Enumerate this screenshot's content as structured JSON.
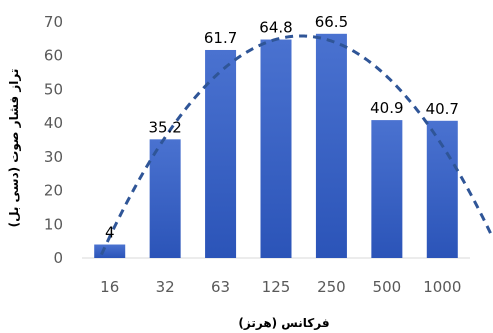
{
  "chart_data": {
    "type": "bar",
    "title": "",
    "xlabel": "فرکانس (هرتز)",
    "ylabel": "تراز فشار صوت (دسی بل)",
    "categories": [
      "16",
      "32",
      "63",
      "125",
      "250",
      "500",
      "1000"
    ],
    "values": [
      4,
      35.2,
      61.7,
      64.8,
      66.5,
      40.9,
      40.7
    ],
    "data_labels": [
      "4",
      "35.2",
      "61.7",
      "64.8",
      "66.5",
      "40.9",
      "40.7"
    ],
    "ylim": [
      0,
      70
    ],
    "yticks": [
      0,
      10,
      20,
      30,
      40,
      50,
      60,
      70
    ],
    "grid": false,
    "legend": "none",
    "trendline": {
      "type": "polynomial",
      "style": "dashed",
      "color": "#2F5597"
    },
    "bar_color_top": "#4A72D0",
    "bar_color_bottom": "#2B54B8"
  }
}
